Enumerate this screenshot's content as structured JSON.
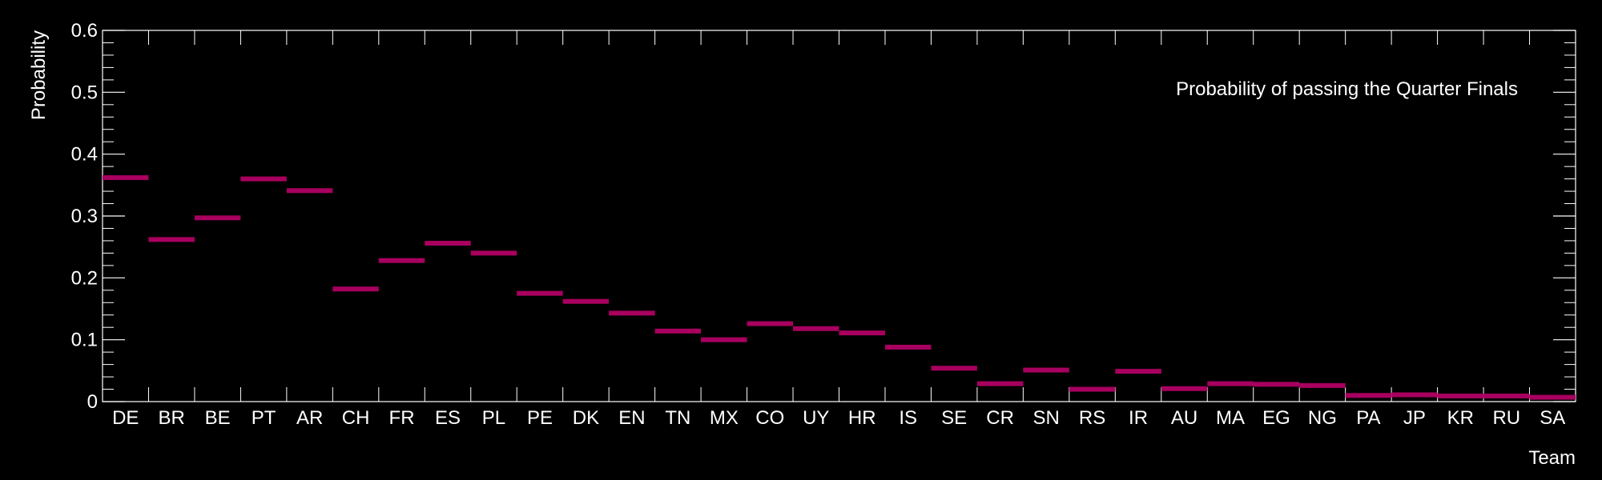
{
  "chart_data": {
    "type": "bar",
    "title": "",
    "legend": "Probability of passing the Quarter Finals",
    "legend_position": "top-right",
    "xlabel": "Team",
    "ylabel": "Probability",
    "ylim": [
      0,
      0.6
    ],
    "yticks": [
      "0",
      "0.1",
      "0.2",
      "0.3",
      "0.4",
      "0.5",
      "0.6"
    ],
    "grid": false,
    "categories": [
      "DE",
      "BR",
      "BE",
      "PT",
      "AR",
      "CH",
      "FR",
      "ES",
      "PL",
      "PE",
      "DK",
      "EN",
      "TN",
      "MX",
      "CO",
      "UY",
      "HR",
      "IS",
      "SE",
      "CR",
      "SN",
      "RS",
      "IR",
      "AU",
      "MA",
      "EG",
      "NG",
      "PA",
      "JP",
      "KR",
      "RU",
      "SA"
    ],
    "series": [
      {
        "values": [
          0.362,
          0.262,
          0.297,
          0.36,
          0.341,
          0.182,
          0.228,
          0.256,
          0.24,
          0.175,
          0.162,
          0.143,
          0.114,
          0.1,
          0.126,
          0.118,
          0.111,
          0.088,
          0.054,
          0.029,
          0.051,
          0.02,
          0.049,
          0.021,
          0.029,
          0.028,
          0.026,
          0.01,
          0.011,
          0.009,
          0.009,
          0.007
        ]
      }
    ],
    "colors": {
      "background": "#000000",
      "axis": "#ffffff",
      "bar": "#a8005f"
    }
  }
}
